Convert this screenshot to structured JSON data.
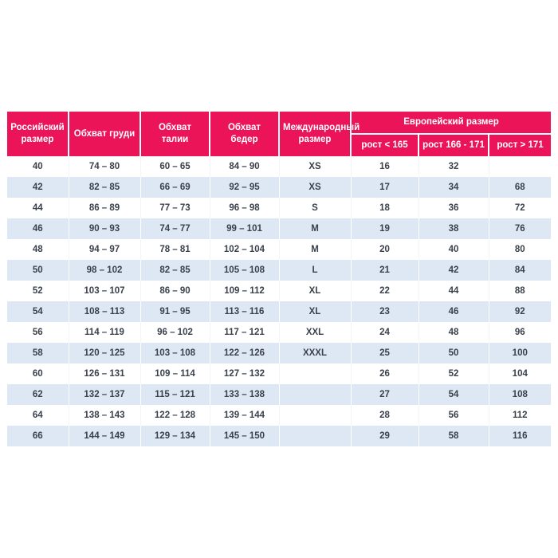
{
  "colors": {
    "header_bg": "#EC1459",
    "header_text": "#FFFFFF",
    "row_bg": "#FFFFFF",
    "row_alt_bg": "#DEE8F5",
    "cell_text": "#3A414B"
  },
  "table": {
    "columns": [
      "Российский размер",
      "Обхват груди",
      "Обхват талии",
      "Обхват бедер",
      "Международный размер"
    ],
    "european_group": {
      "label": "Европейский размер",
      "sub_columns": [
        "рост < 165",
        "рост 166 - 171",
        "рост > 171"
      ]
    },
    "rows": [
      [
        "40",
        "74 – 80",
        "60 – 65",
        "84 – 90",
        "XS",
        "16",
        "32",
        ""
      ],
      [
        "42",
        "82 – 85",
        "66 – 69",
        "92 – 95",
        "XS",
        "17",
        "34",
        "68"
      ],
      [
        "44",
        "86 – 89",
        "77 – 73",
        "96 – 98",
        "S",
        "18",
        "36",
        "72"
      ],
      [
        "46",
        "90 – 93",
        "74 – 77",
        "99 – 101",
        "M",
        "19",
        "38",
        "76"
      ],
      [
        "48",
        "94 – 97",
        "78 – 81",
        "102 – 104",
        "M",
        "20",
        "40",
        "80"
      ],
      [
        "50",
        "98 – 102",
        "82 – 85",
        "105 – 108",
        "L",
        "21",
        "42",
        "84"
      ],
      [
        "52",
        "103 – 107",
        "86 – 90",
        "109 – 112",
        "XL",
        "22",
        "44",
        "88"
      ],
      [
        "54",
        "108 – 113",
        "91 – 95",
        "113 – 116",
        "XL",
        "23",
        "46",
        "92"
      ],
      [
        "56",
        "114 – 119",
        "96 – 102",
        "117 – 121",
        "XXL",
        "24",
        "48",
        "96"
      ],
      [
        "58",
        "120 – 125",
        "103 – 108",
        "122 – 126",
        "XXXL",
        "25",
        "50",
        "100"
      ],
      [
        "60",
        "126 – 131",
        "109 – 114",
        "127 – 132",
        "",
        "26",
        "52",
        "104"
      ],
      [
        "62",
        "132 – 137",
        "115 – 121",
        "133 – 138",
        "",
        "27",
        "54",
        "108"
      ],
      [
        "64",
        "138 – 143",
        "122 – 128",
        "139 – 144",
        "",
        "28",
        "56",
        "112"
      ],
      [
        "66",
        "144 – 149",
        "129 – 134",
        "145 – 150",
        "",
        "29",
        "58",
        "116"
      ]
    ]
  }
}
